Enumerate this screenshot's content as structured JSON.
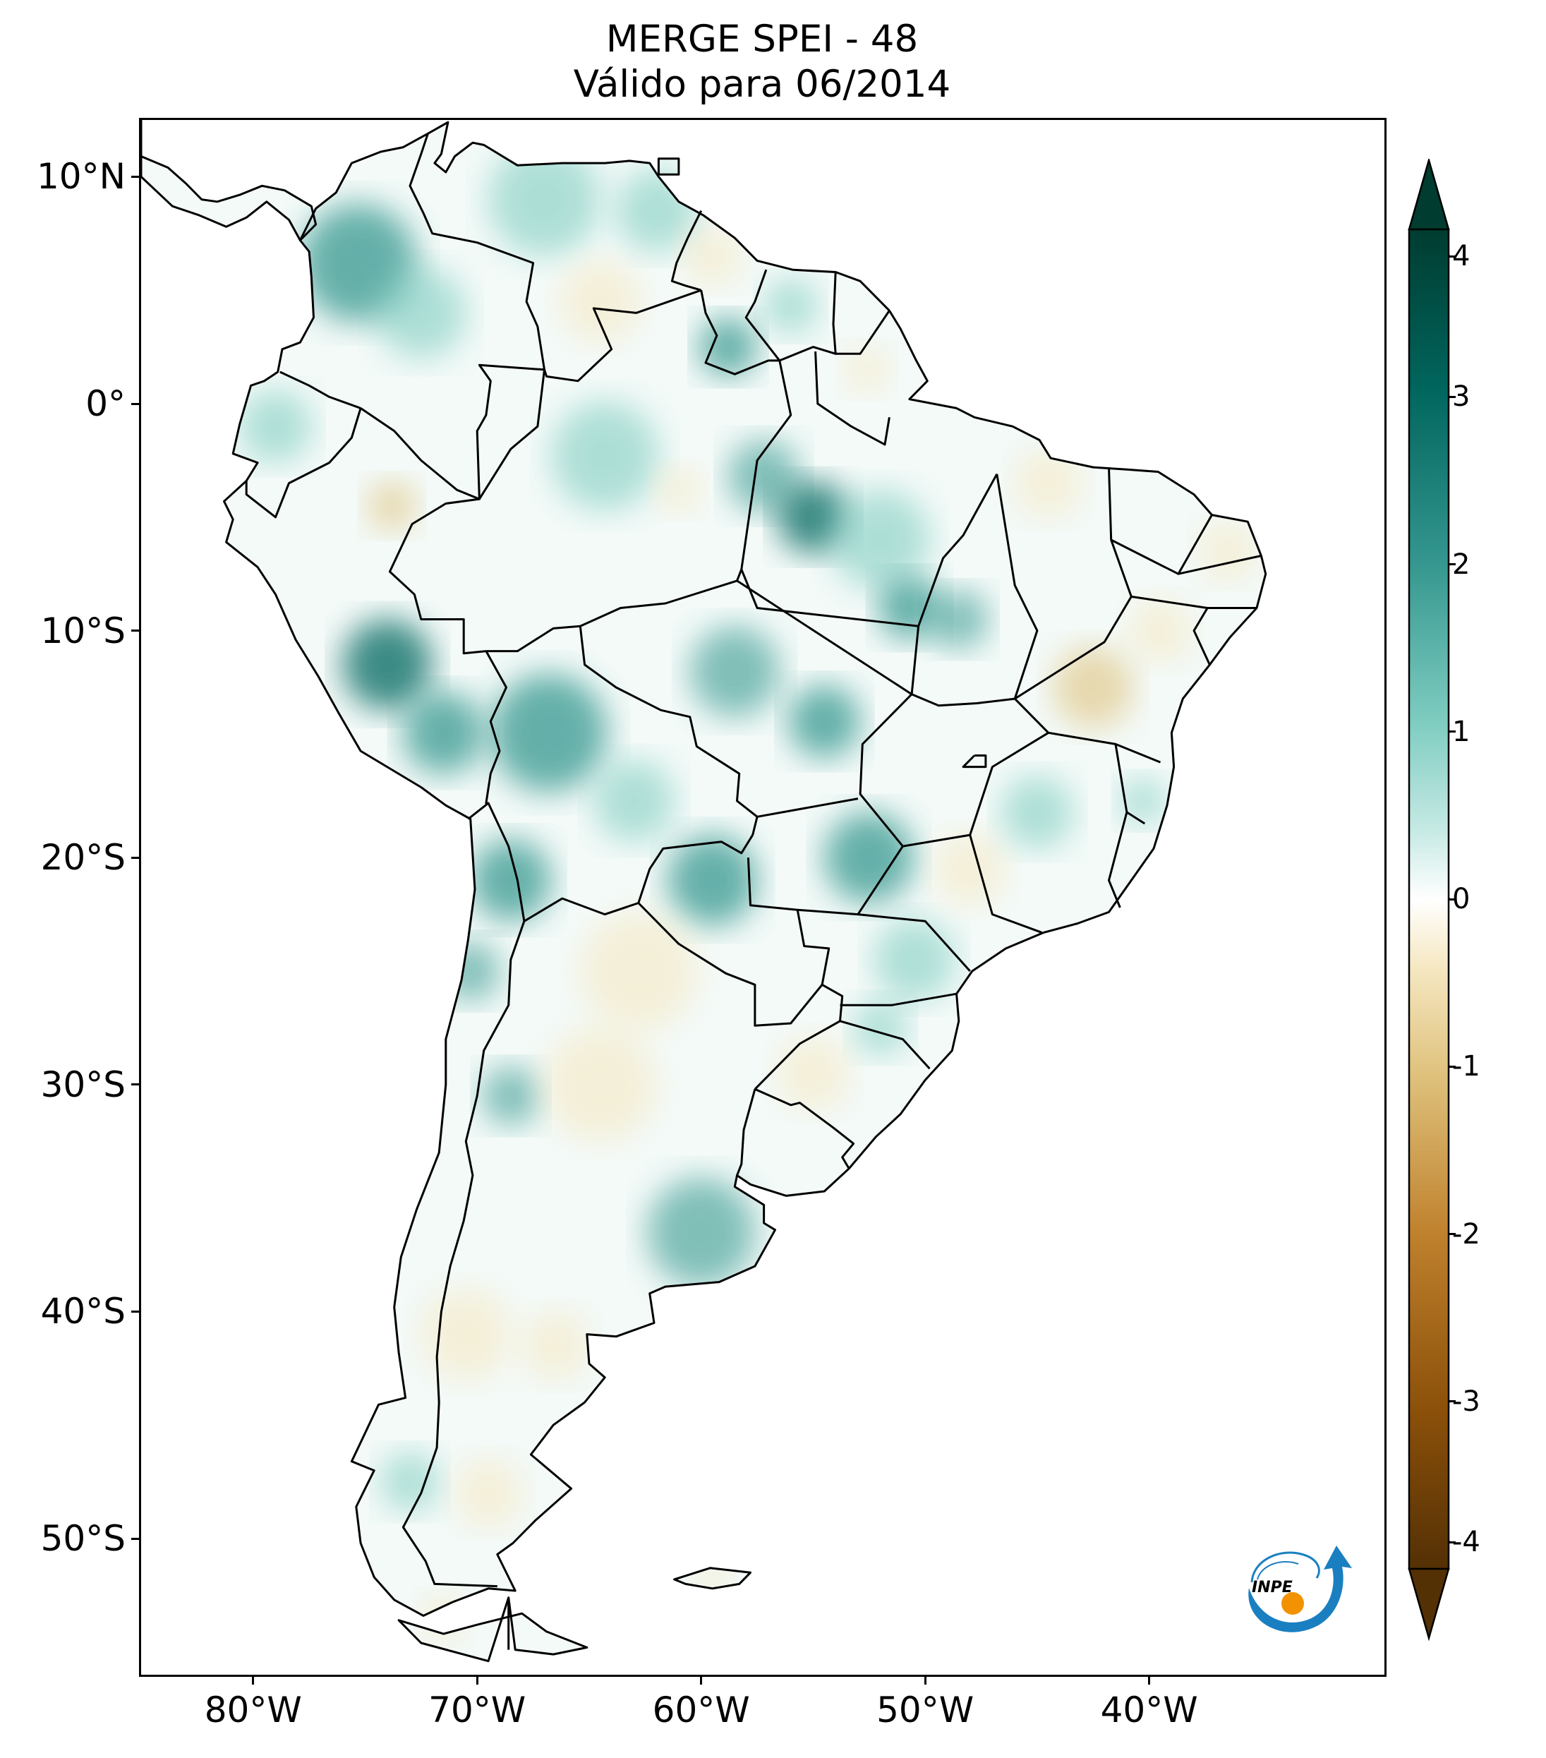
{
  "title": {
    "line1": "MERGE   SPEI - 48",
    "line2": "Válido para 06/2014"
  },
  "axes": {
    "lat_labels": [
      "10°N",
      "0°",
      "10°S",
      "20°S",
      "30°S",
      "40°S",
      "50°S"
    ],
    "lat_values": [
      10,
      0,
      -10,
      -20,
      -30,
      -40,
      -50
    ],
    "lon_labels": [
      "80°W",
      "70°W",
      "60°W",
      "50°W",
      "40°W"
    ],
    "lon_values": [
      -80,
      -70,
      -60,
      -50,
      -40
    ],
    "lat_range": [
      -56,
      12.5
    ],
    "lon_range": [
      -85,
      -29.5
    ]
  },
  "colorbar": {
    "labels": [
      "4",
      "3",
      "2",
      "1",
      "0",
      "-1",
      "-2",
      "-3",
      "-4"
    ],
    "values": [
      4,
      3,
      2,
      1,
      0,
      -1,
      -2,
      -3,
      -4
    ],
    "range": [
      -4,
      4
    ],
    "extend": "both",
    "colors": {
      "max": "#003c30",
      "high": "#01665e",
      "mid_high": "#35978f",
      "low_high": "#80cdc1",
      "pale_high": "#c7eae5",
      "zero": "#ffffff",
      "pale_low": "#f6e8c3",
      "low_low": "#dfc27d",
      "mid_low": "#bf812d",
      "low": "#8c510a",
      "min": "#543005"
    }
  },
  "logo": {
    "text": "INPE",
    "colors": {
      "blue": "#1a7fc1",
      "orange": "#f39200"
    }
  },
  "map": {
    "land_base": "#f3faf8",
    "border_color": "#000000",
    "wet_color": "#35978f",
    "dry_color": "#dfc27d"
  }
}
